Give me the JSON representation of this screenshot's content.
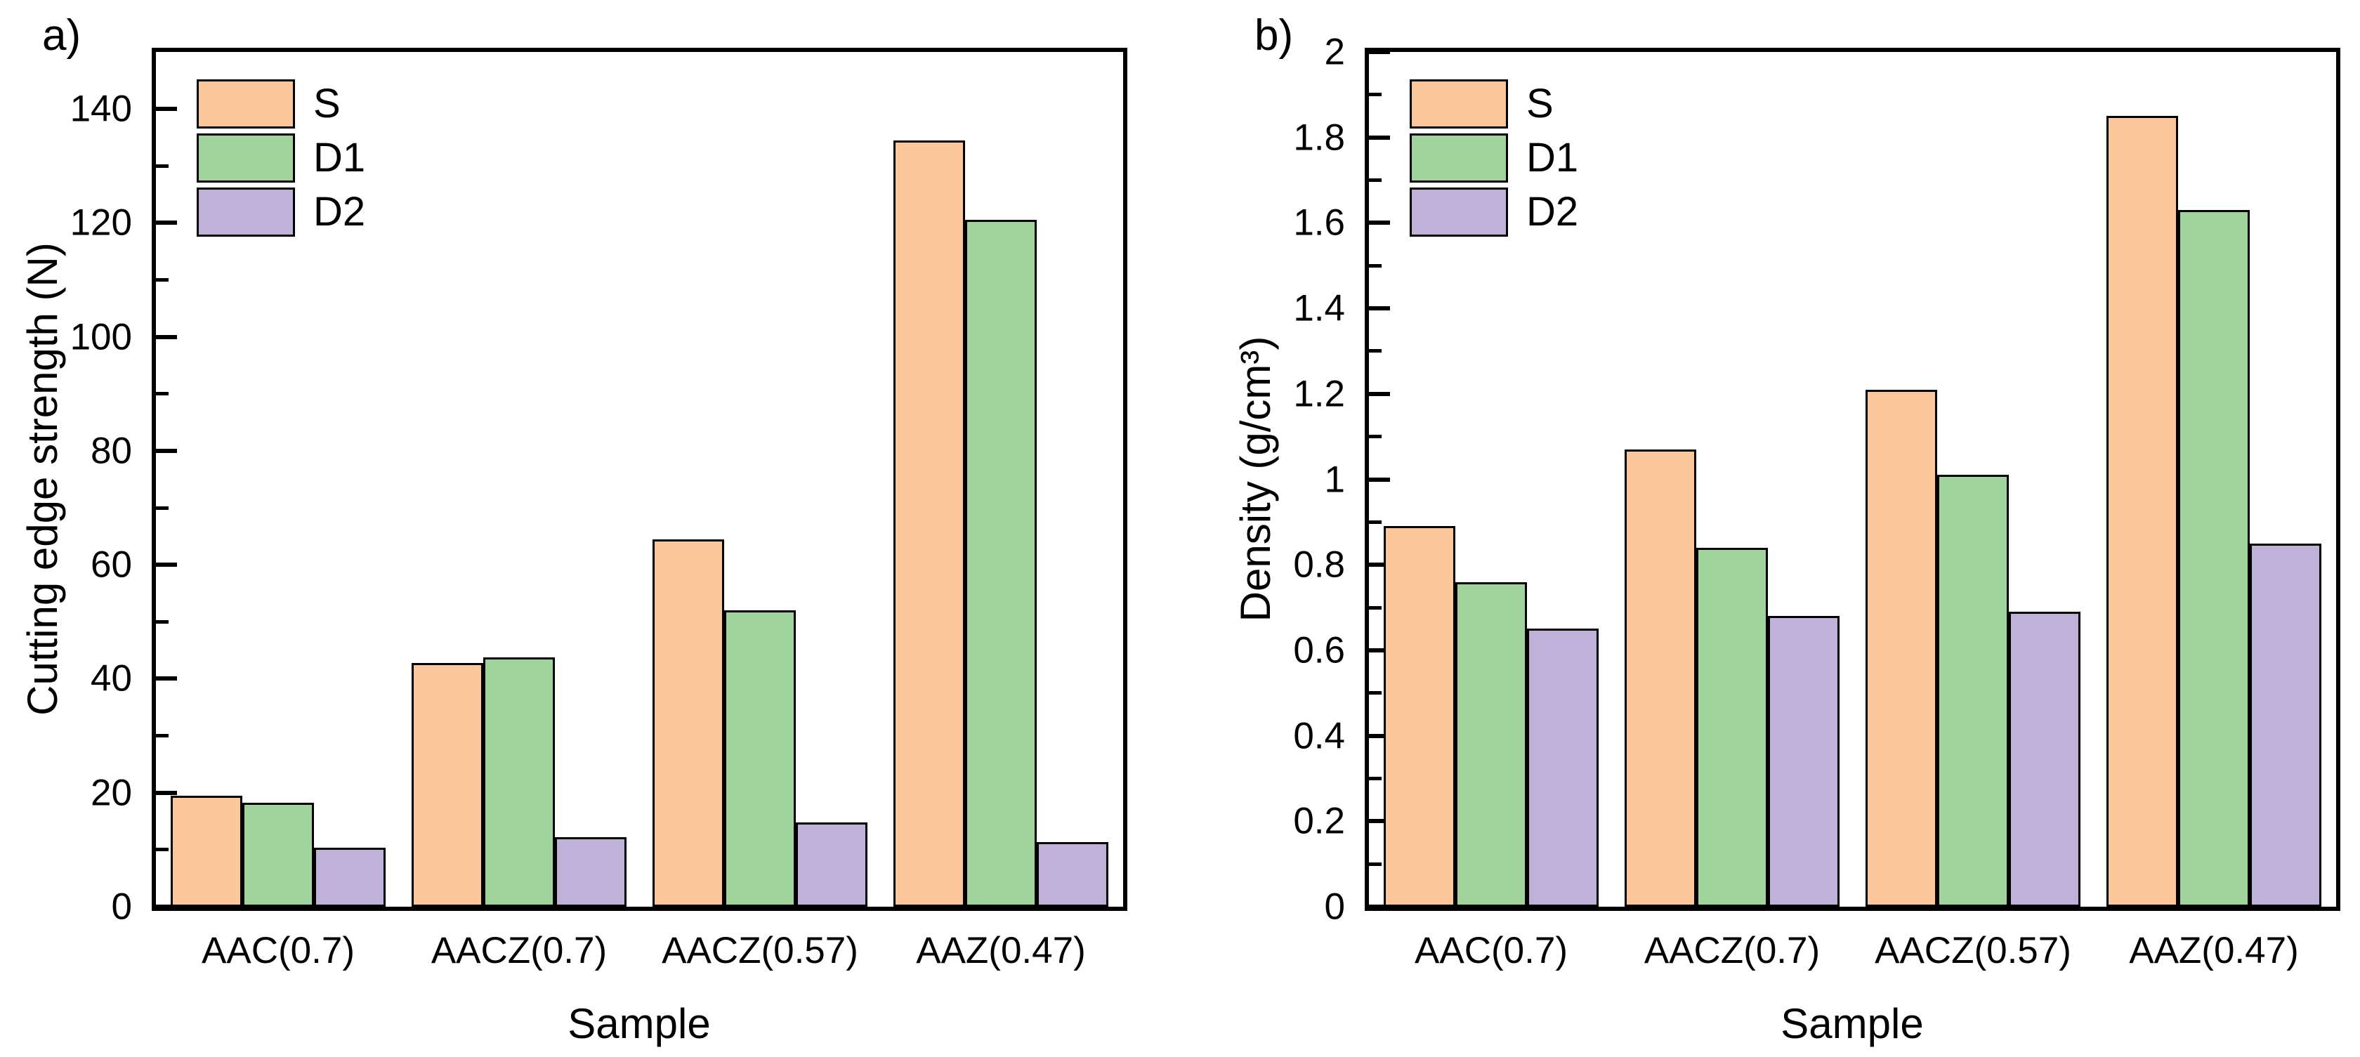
{
  "figure": {
    "background": "#ffffff",
    "axis_color": "#000000",
    "bar_edge_color": "#000000"
  },
  "legend": {
    "entries": [
      {
        "label": "S",
        "color": "#FBC79A"
      },
      {
        "label": "D1",
        "color": "#A1D49D"
      },
      {
        "label": "D2",
        "color": "#C0B1D9"
      }
    ]
  },
  "chart_data": [
    {
      "type": "bar",
      "panel_tag": "a)",
      "xlabel": "Sample",
      "ylabel": "Cutting edge strength (N)",
      "ylim": [
        0,
        150
      ],
      "grid": false,
      "legend_position": "top-left",
      "categories": [
        "AAC(0.7)",
        "AACZ(0.7)",
        "AACZ(0.57)",
        "AAZ(0.47)"
      ],
      "series": [
        {
          "name": "S",
          "values": [
            19.5,
            42.8,
            64.5,
            134.5
          ]
        },
        {
          "name": "D1",
          "values": [
            18.2,
            43.8,
            52.0,
            120.5
          ]
        },
        {
          "name": "D2",
          "values": [
            10.4,
            12.2,
            14.8,
            11.4
          ]
        }
      ],
      "yticks_major": [
        {
          "value": 0,
          "label": "0"
        },
        {
          "value": 20,
          "label": "20"
        },
        {
          "value": 40,
          "label": "40"
        },
        {
          "value": 60,
          "label": "60"
        },
        {
          "value": 80,
          "label": "80"
        },
        {
          "value": 100,
          "label": "100"
        },
        {
          "value": 120,
          "label": "120"
        },
        {
          "value": 140,
          "label": "140"
        }
      ],
      "yticks_minor": [
        10,
        30,
        50,
        70,
        90,
        110,
        130
      ]
    },
    {
      "type": "bar",
      "panel_tag": "b)",
      "xlabel": "Sample",
      "ylabel": "Density (g/cm³)",
      "ylim": [
        0,
        2
      ],
      "grid": false,
      "legend_position": "top-left",
      "categories": [
        "AAC(0.7)",
        "AACZ(0.7)",
        "AACZ(0.57)",
        "AAZ(0.47)"
      ],
      "series": [
        {
          "name": "S",
          "values": [
            0.89,
            1.07,
            1.21,
            1.85
          ]
        },
        {
          "name": "D1",
          "values": [
            0.76,
            0.84,
            1.01,
            1.63
          ]
        },
        {
          "name": "D2",
          "values": [
            0.65,
            0.68,
            0.69,
            0.85
          ]
        }
      ],
      "yticks_major": [
        {
          "value": 0,
          "label": "0"
        },
        {
          "value": 0.2,
          "label": "0.2"
        },
        {
          "value": 0.4,
          "label": "0.4"
        },
        {
          "value": 0.6,
          "label": "0.6"
        },
        {
          "value": 0.8,
          "label": "0.8"
        },
        {
          "value": 1,
          "label": "1"
        },
        {
          "value": 1.2,
          "label": "1.2"
        },
        {
          "value": 1.4,
          "label": "1.4"
        },
        {
          "value": 1.6,
          "label": "1.6"
        },
        {
          "value": 1.8,
          "label": "1.8"
        },
        {
          "value": 2,
          "label": "2"
        }
      ],
      "yticks_minor": [
        0.1,
        0.3,
        0.5,
        0.7,
        0.9,
        1.1,
        1.3,
        1.5,
        1.7,
        1.9
      ]
    }
  ]
}
